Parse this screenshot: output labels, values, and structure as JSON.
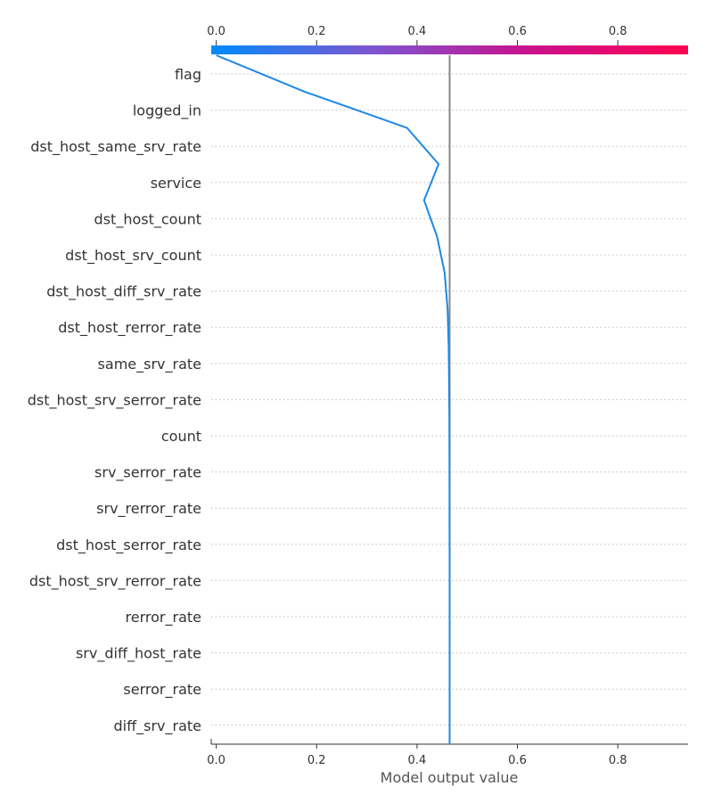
{
  "chart_data": {
    "type": "line",
    "subtype": "shap-decision-plot",
    "xlabel": "Model output value",
    "xlim": [
      -0.01,
      0.94
    ],
    "x_ticks": [
      "0.0",
      "0.2",
      "0.4",
      "0.6",
      "0.8"
    ],
    "x_tick_values": [
      0.0,
      0.2,
      0.4,
      0.6,
      0.8
    ],
    "base_value": 0.465,
    "colorbar": {
      "range": [
        0.0,
        0.94
      ],
      "colors": [
        "#008bfb",
        "#7b57d2",
        "#c7128e",
        "#ff0052"
      ]
    },
    "grid": "dotted horizontal",
    "features": [
      "flag",
      "logged_in",
      "dst_host_same_srv_rate",
      "service",
      "dst_host_count",
      "dst_host_srv_count",
      "dst_host_diff_srv_rate",
      "dst_host_rerror_rate",
      "same_srv_rate",
      "dst_host_srv_serror_rate",
      "count",
      "srv_serror_rate",
      "srv_rerror_rate",
      "dst_host_serror_rate",
      "dst_host_srv_rerror_rate",
      "rerror_rate",
      "srv_diff_host_rate",
      "serror_rate",
      "diff_srv_rate"
    ],
    "series": [
      {
        "color": "#1e88e5",
        "values": [
          0.0,
          0.175,
          0.38,
          0.443,
          0.414,
          0.44,
          0.455,
          0.461,
          0.463,
          0.464,
          0.4645,
          0.4647,
          0.4648,
          0.4649,
          0.465,
          0.465,
          0.465,
          0.465,
          0.465,
          0.465
        ]
      }
    ]
  }
}
